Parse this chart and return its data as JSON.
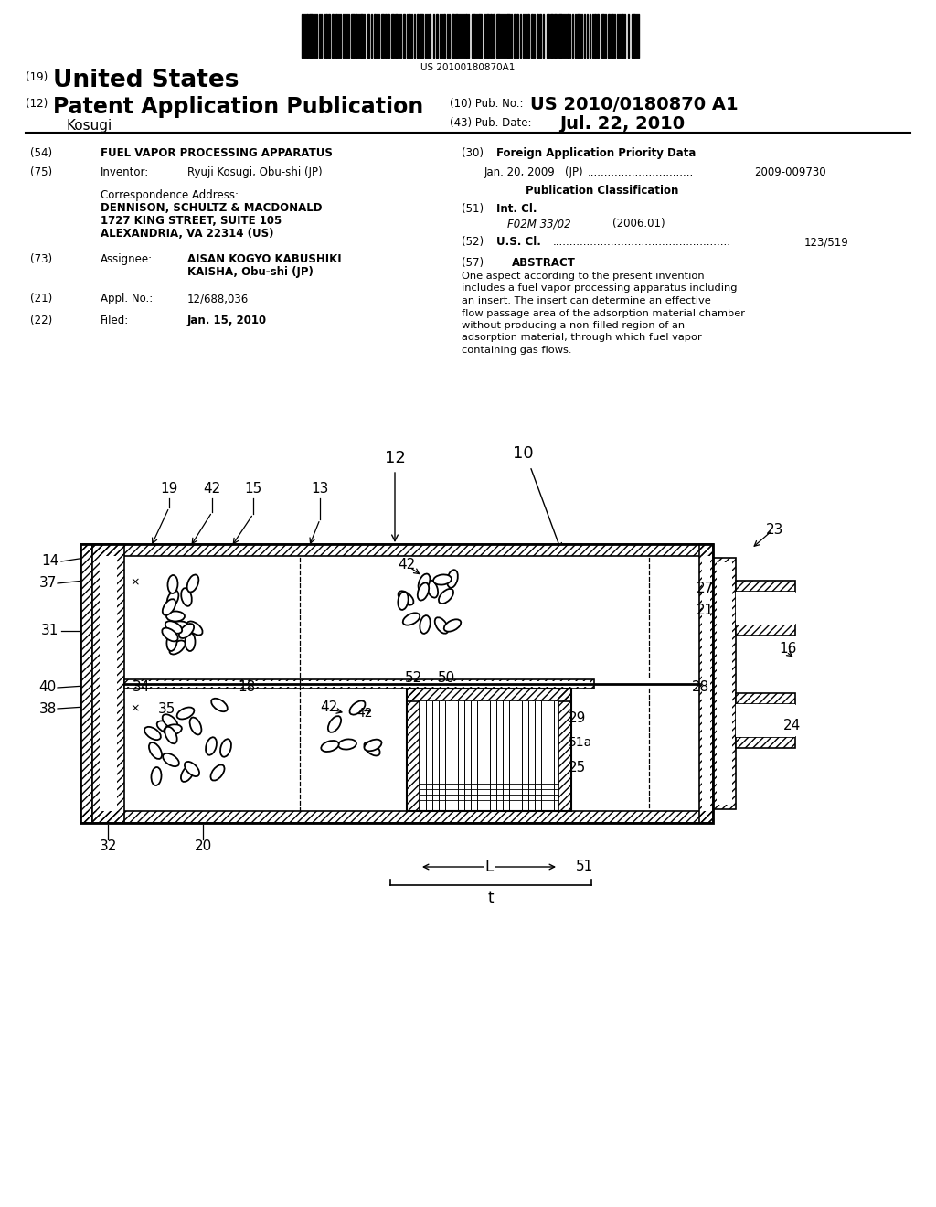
{
  "background_color": "#ffffff",
  "barcode_text": "US 20100180870A1",
  "header": {
    "country_num": "(19)",
    "country": "United States",
    "type_num": "(12)",
    "type": "Patent Application Publication",
    "pub_num_label": "(10) Pub. No.:",
    "pub_num": "US 2010/0180870 A1",
    "pub_date_label": "(43) Pub. Date:",
    "pub_date": "Jul. 22, 2010",
    "inventor_last": "Kosugi"
  },
  "left_col": {
    "title_num": "(54)",
    "title": "FUEL VAPOR PROCESSING APPARATUS",
    "inventor_num": "(75)",
    "inventor_label": "Inventor:",
    "inventor": "Ryuji Kosugi, Obu-shi (JP)",
    "corr_label": "Correspondence Address:",
    "corr_line1": "DENNISON, SCHULTZ & MACDONALD",
    "corr_line2": "1727 KING STREET, SUITE 105",
    "corr_line3": "ALEXANDRIA, VA 22314 (US)",
    "assignee_num": "(73)",
    "assignee_label": "Assignee:",
    "assignee_line1": "AISAN KOGYO KABUSHIKI",
    "assignee_line2": "KAISHA, Obu-shi (JP)",
    "appl_num": "(21)",
    "appl_label": "Appl. No.:",
    "appl_value": "12/688,036",
    "filed_num": "(22)",
    "filed_label": "Filed:",
    "filed_value": "Jan. 15, 2010"
  },
  "right_col": {
    "priority_num": "(30)",
    "priority_title": "Foreign Application Priority Data",
    "priority_date": "Jan. 20, 2009",
    "priority_country": "(JP)",
    "priority_dots": "...............................",
    "priority_app": "2009-009730",
    "pub_class_title": "Publication Classification",
    "intcl_num": "(51)",
    "intcl_label": "Int. Cl.",
    "intcl_class": "F02M 33/02",
    "intcl_year": "(2006.01)",
    "uscl_num": "(52)",
    "uscl_label": "U.S. Cl.",
    "uscl_dots": "....................................................",
    "uscl_value": "123/519",
    "abstract_num": "(57)",
    "abstract_title": "ABSTRACT",
    "abstract_text": "One aspect according to the present invention includes a fuel vapor processing apparatus including an insert. The insert can determine an effective flow passage area of the adsorption material chamber without producing a non-filled region of an adsorption material, through which fuel vapor containing gas flows."
  }
}
